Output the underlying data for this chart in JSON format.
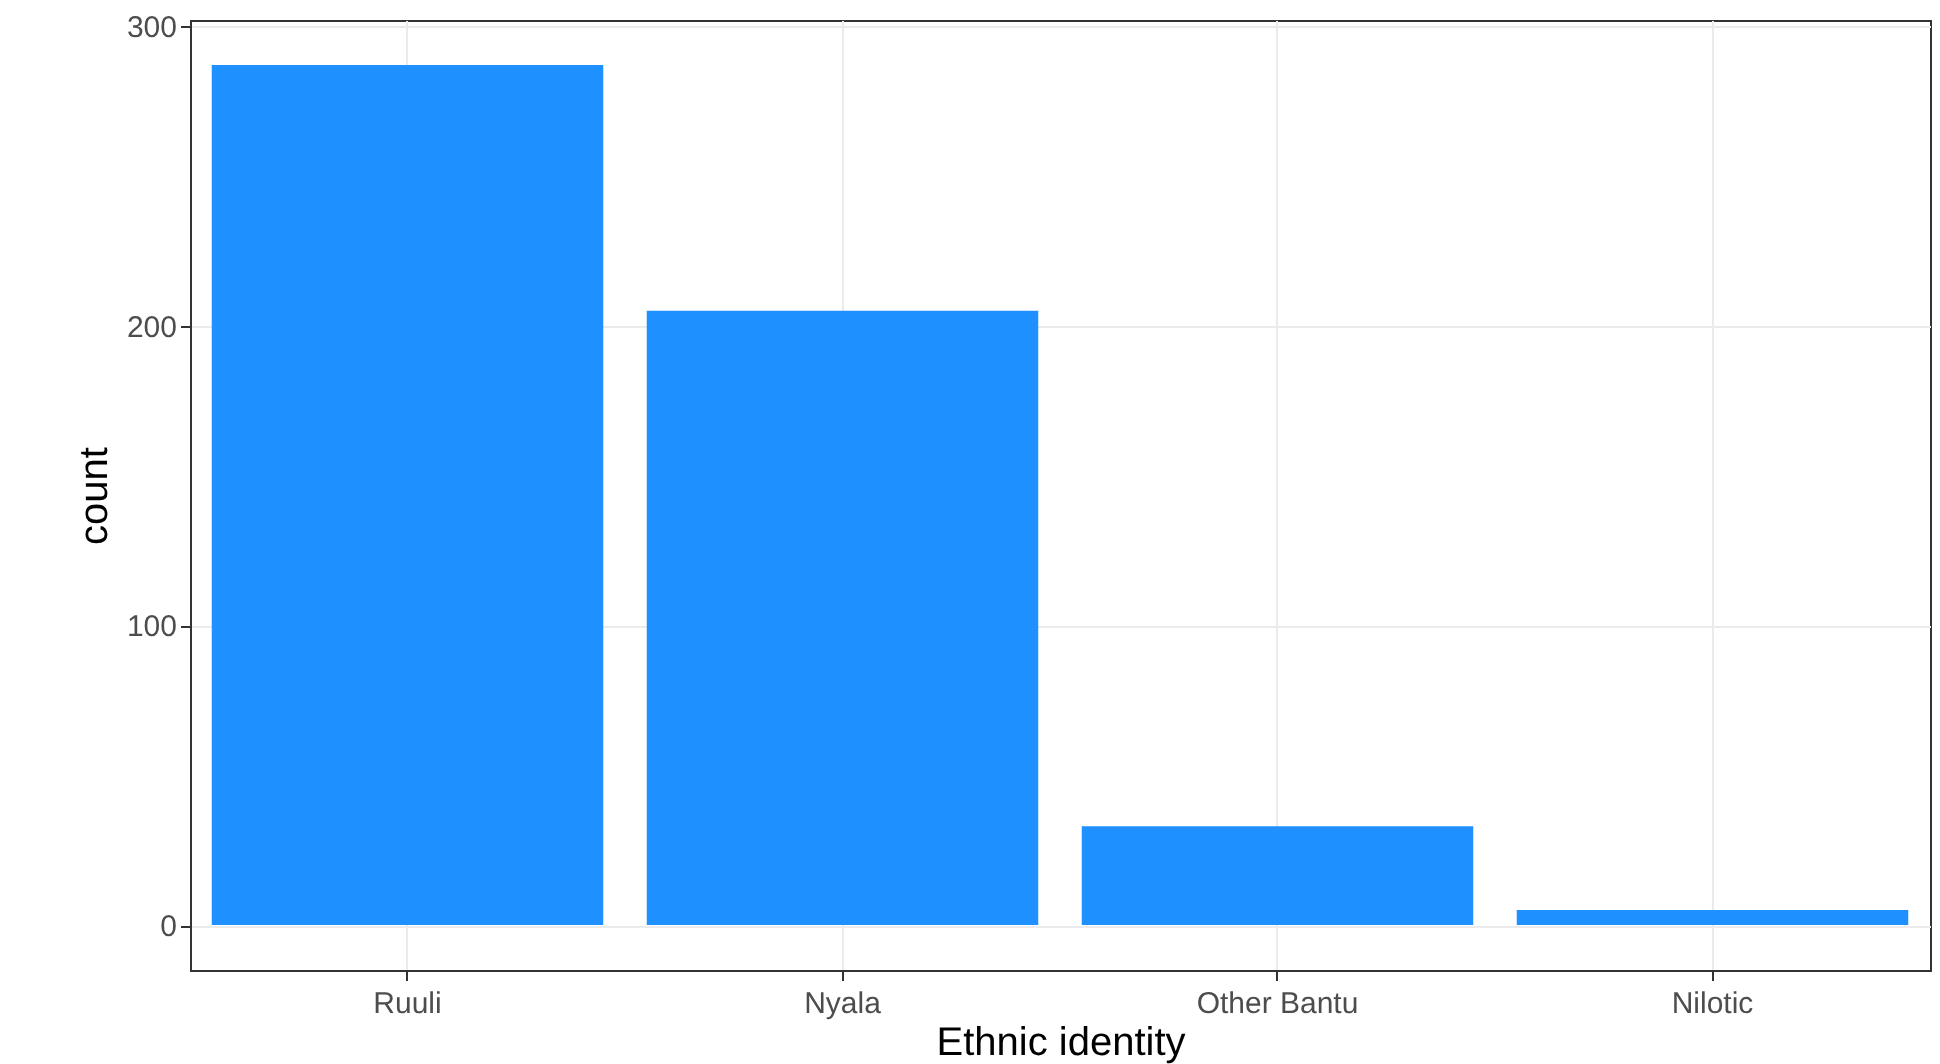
{
  "chart_data": {
    "type": "bar",
    "xlabel": "Ethnic identity",
    "ylabel": "count",
    "categories": [
      "Ruuli",
      "Nyala",
      "Other Bantu",
      "Nilotic"
    ],
    "values": [
      287,
      205,
      33,
      5
    ],
    "color": "#1e90ff",
    "ylim": [
      -15,
      302
    ],
    "yticks": [
      0,
      100,
      200,
      300
    ],
    "grid": true
  }
}
